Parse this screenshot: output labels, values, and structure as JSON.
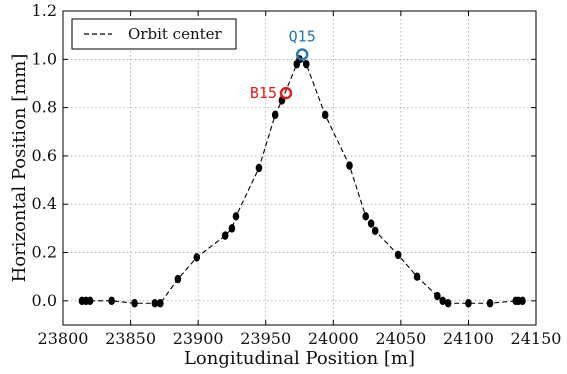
{
  "chart_data": {
    "type": "line",
    "xlabel": "Longitudinal Position [m]",
    "ylabel": "Horizontal Position [mm]",
    "xlim": [
      23800,
      24150
    ],
    "ylim": [
      -0.1,
      1.2
    ],
    "xticks": [
      23800,
      23850,
      23900,
      23950,
      24000,
      24050,
      24100,
      24150
    ],
    "yticks": [
      0.0,
      0.2,
      0.4,
      0.6,
      0.8,
      1.0,
      1.2
    ],
    "xtick_labels": [
      "23800",
      "23850",
      "23900",
      "23950",
      "24000",
      "24050",
      "24100",
      "24150"
    ],
    "ytick_labels": [
      "0.0",
      "0.2",
      "0.4",
      "0.6",
      "0.8",
      "1.0",
      "1.2"
    ],
    "grid": true,
    "legend": {
      "position": "top-left",
      "entries": [
        "Orbit center"
      ]
    },
    "series": [
      {
        "name": "Orbit center",
        "style": "dashed-with-markers",
        "color": "#000000",
        "x": [
          23814,
          23817,
          23820,
          23836,
          23853,
          23868,
          23872,
          23885,
          23899,
          23920,
          23925,
          23928,
          23945,
          23957,
          23962,
          23973,
          23975,
          23980,
          23994,
          24012,
          24024,
          24028,
          24031,
          24048,
          24062,
          24077,
          24081,
          24085,
          24100,
          24116,
          24135,
          24137,
          24140
        ],
        "y": [
          0.0,
          0.0,
          0.0,
          0.0,
          -0.01,
          -0.01,
          -0.01,
          0.09,
          0.18,
          0.27,
          0.3,
          0.35,
          0.55,
          0.77,
          0.83,
          0.98,
          1.0,
          0.98,
          0.77,
          0.56,
          0.35,
          0.32,
          0.29,
          0.19,
          0.1,
          0.02,
          0.0,
          -0.01,
          -0.01,
          -0.01,
          0.0,
          0.0,
          0.0
        ]
      }
    ],
    "annotations": [
      {
        "label": "Q15",
        "x": 23977,
        "y": 1.02,
        "color": "#1f77b4"
      },
      {
        "label": "B15",
        "x": 23965,
        "y": 0.86,
        "color": "#e31a1c"
      }
    ]
  }
}
